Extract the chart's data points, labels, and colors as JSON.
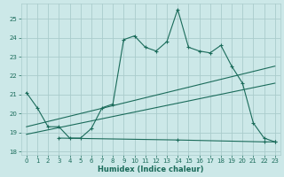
{
  "xlabel": "Humidex (Indice chaleur)",
  "bg_color": "#cce8e8",
  "grid_color": "#aacccc",
  "line_color": "#1a6b5a",
  "xlim": [
    -0.5,
    23.5
  ],
  "ylim": [
    17.8,
    25.8
  ],
  "xticks": [
    0,
    1,
    2,
    3,
    4,
    5,
    6,
    7,
    8,
    9,
    10,
    11,
    12,
    13,
    14,
    15,
    16,
    17,
    18,
    19,
    20,
    21,
    22,
    23
  ],
  "yticks": [
    18,
    19,
    20,
    21,
    22,
    23,
    24,
    25
  ],
  "curve1_x": [
    0,
    1,
    2,
    3,
    4,
    5,
    6,
    7,
    8,
    9,
    10,
    11,
    12,
    13,
    14,
    15,
    16,
    17,
    18,
    19,
    20,
    21,
    22,
    23
  ],
  "curve1_y": [
    21.1,
    20.3,
    19.3,
    19.3,
    18.7,
    18.7,
    19.2,
    20.3,
    20.5,
    23.9,
    24.1,
    23.5,
    23.3,
    23.8,
    25.5,
    23.5,
    23.3,
    23.2,
    23.6,
    22.5,
    21.6,
    19.5,
    18.7,
    18.5
  ],
  "line2_x": [
    0,
    23
  ],
  "line2_y": [
    19.3,
    22.5
  ],
  "line3_x": [
    0,
    23
  ],
  "line3_y": [
    18.9,
    21.6
  ],
  "line4_x": [
    3,
    14,
    22,
    23
  ],
  "line4_y": [
    18.7,
    18.6,
    18.5,
    18.5
  ]
}
